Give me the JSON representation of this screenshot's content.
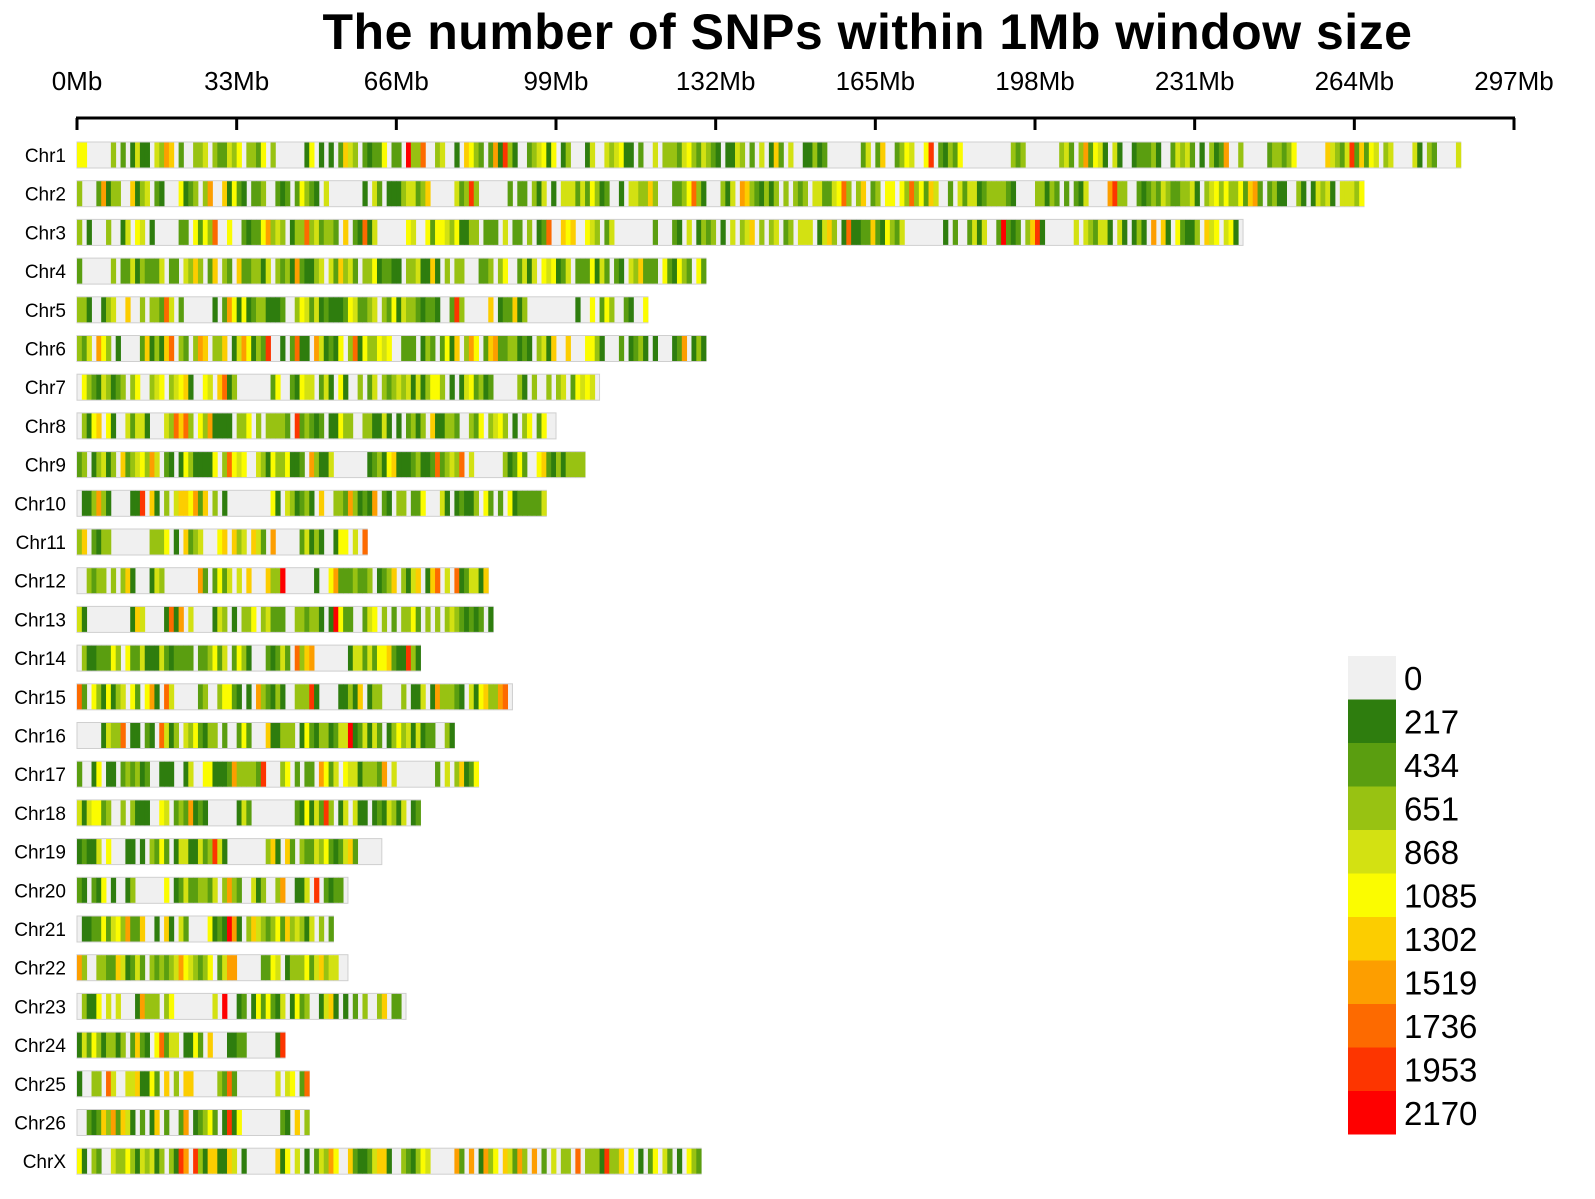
{
  "chart_data": {
    "type": "heatmap",
    "title": "The number of SNPs within 1Mb window size",
    "xlabel": "",
    "ylabel": "",
    "x_unit": "Mb",
    "xlim": [
      0,
      297
    ],
    "x_ticks": [
      {
        "value": 0,
        "label": "0Mb"
      },
      {
        "value": 33,
        "label": "33Mb"
      },
      {
        "value": 66,
        "label": "66Mb"
      },
      {
        "value": 99,
        "label": "99Mb"
      },
      {
        "value": 132,
        "label": "132Mb"
      },
      {
        "value": 165,
        "label": "165Mb"
      },
      {
        "value": 198,
        "label": "198Mb"
      },
      {
        "value": 231,
        "label": "231Mb"
      },
      {
        "value": 264,
        "label": "264Mb"
      },
      {
        "value": 297,
        "label": "297Mb"
      }
    ],
    "window_size_mb": 1,
    "chromosomes": [
      {
        "name": "Chr1",
        "length_mb": 286
      },
      {
        "name": "Chr2",
        "length_mb": 266
      },
      {
        "name": "Chr3",
        "length_mb": 241
      },
      {
        "name": "Chr4",
        "length_mb": 130
      },
      {
        "name": "Chr5",
        "length_mb": 118
      },
      {
        "name": "Chr6",
        "length_mb": 130
      },
      {
        "name": "Chr7",
        "length_mb": 108
      },
      {
        "name": "Chr8",
        "length_mb": 99
      },
      {
        "name": "Chr9",
        "length_mb": 105
      },
      {
        "name": "Chr10",
        "length_mb": 97
      },
      {
        "name": "Chr11",
        "length_mb": 60
      },
      {
        "name": "Chr12",
        "length_mb": 85
      },
      {
        "name": "Chr13",
        "length_mb": 86
      },
      {
        "name": "Chr14",
        "length_mb": 71
      },
      {
        "name": "Chr15",
        "length_mb": 90
      },
      {
        "name": "Chr16",
        "length_mb": 78
      },
      {
        "name": "Chr17",
        "length_mb": 83
      },
      {
        "name": "Chr18",
        "length_mb": 71
      },
      {
        "name": "Chr19",
        "length_mb": 63
      },
      {
        "name": "Chr20",
        "length_mb": 56
      },
      {
        "name": "Chr21",
        "length_mb": 53
      },
      {
        "name": "Chr22",
        "length_mb": 56
      },
      {
        "name": "Chr23",
        "length_mb": 68
      },
      {
        "name": "Chr24",
        "length_mb": 43
      },
      {
        "name": "Chr25",
        "length_mb": 48
      },
      {
        "name": "Chr26",
        "length_mb": 48
      },
      {
        "name": "ChrX",
        "length_mb": 129
      }
    ],
    "legend": {
      "placement": "bottom-right",
      "levels": [
        {
          "label": "0",
          "color": "#f0f0f0"
        },
        {
          "label": "217",
          "color": "#2e7d0e"
        },
        {
          "label": "434",
          "color": "#5a9e10"
        },
        {
          "label": "651",
          "color": "#98c212"
        },
        {
          "label": "868",
          "color": "#d3e112"
        },
        {
          "label": "1085",
          "color": "#fbfc00"
        },
        {
          "label": "1302",
          "color": "#fccd00"
        },
        {
          "label": "1519",
          "color": "#fd9e00"
        },
        {
          "label": "1736",
          "color": "#fd6a00"
        },
        {
          "label": "1953",
          "color": "#fd3500"
        },
        {
          "label": "2170",
          "color": "#fe0000"
        }
      ]
    }
  }
}
